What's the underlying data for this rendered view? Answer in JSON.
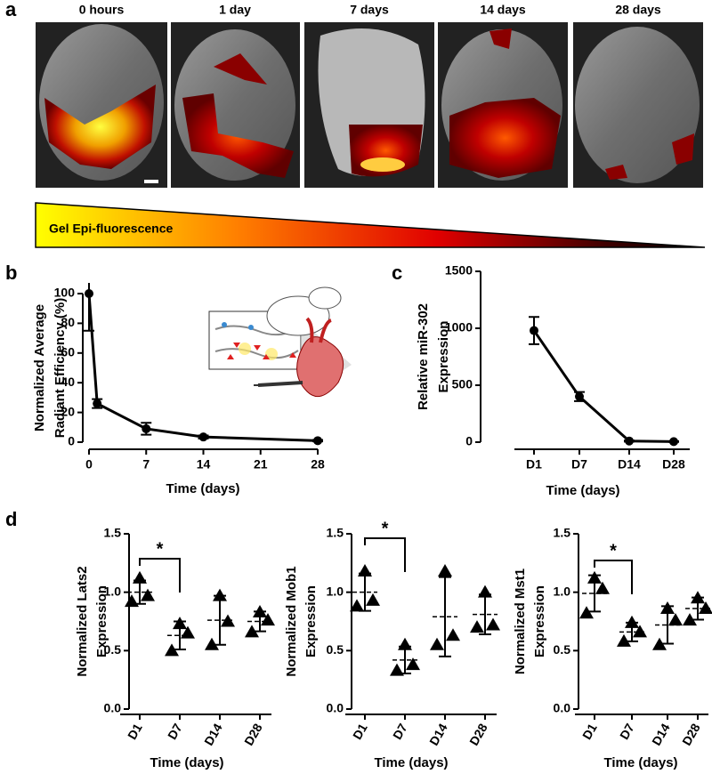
{
  "panel_labels": [
    "a",
    "b",
    "c",
    "d"
  ],
  "images": {
    "labels": [
      "0 hours",
      "1 day",
      "7 days",
      "14 days",
      "28 days"
    ],
    "gradient_label": "Gel Epi-fluorescence"
  },
  "chart_data": [
    {
      "type": "line",
      "x": [
        0,
        1,
        7,
        14,
        28
      ],
      "values": [
        100,
        26,
        9,
        3.5,
        1
      ],
      "errors": [
        25,
        3,
        4,
        1,
        0.5
      ],
      "xlim": [
        0,
        28
      ],
      "xticks": [
        0,
        7,
        14,
        21,
        28
      ],
      "ylim": [
        0,
        100
      ],
      "yticks": [
        0,
        20,
        40,
        60,
        80,
        100
      ],
      "x_label": "Time (days)",
      "y_label": [
        "Normalized Average",
        "Radiant Efficiency (%)"
      ],
      "color": "#000000"
    },
    {
      "type": "line",
      "categories": [
        "D1",
        "D7",
        "D14",
        "D28"
      ],
      "values": [
        980,
        400,
        10,
        5
      ],
      "errors": [
        120,
        40,
        5,
        3
      ],
      "ylim": [
        0,
        1500
      ],
      "yticks": [
        0,
        500,
        1000,
        1500
      ],
      "x_label": "Time (days)",
      "y_label": [
        "Relative miR-302",
        "Expression"
      ],
      "color": "#000000"
    },
    {
      "type": "dot",
      "categories": [
        "D1",
        "D7",
        "D14",
        "D28"
      ],
      "points": [
        [
          0.92,
          1.12,
          0.97
        ],
        [
          0.5,
          0.73,
          0.65
        ],
        [
          0.55,
          0.97,
          0.75
        ],
        [
          0.66,
          0.83,
          0.76
        ]
      ],
      "mean": [
        1.0,
        0.63,
        0.76,
        0.75
      ],
      "sd": [
        0.1,
        0.12,
        0.21,
        0.085
      ],
      "ylim": [
        0,
        1.5
      ],
      "yticks": [
        {
          "value": 0,
          "label": "0.0"
        },
        0.5,
        {
          "value": 1,
          "label": "1.0"
        },
        1.5
      ],
      "annotation": "*",
      "x_label": "Time (days)",
      "y_label": [
        "Normalized Lats2",
        "Expression"
      ],
      "color": "#000000"
    },
    {
      "type": "dot",
      "categories": [
        "D1",
        "D7",
        "D14",
        "D28"
      ],
      "points": [
        [
          0.88,
          1.18,
          0.93
        ],
        [
          0.33,
          0.55,
          0.38
        ],
        [
          0.55,
          1.18,
          0.63
        ],
        [
          0.7,
          1.0,
          0.72
        ]
      ],
      "mean": [
        1.0,
        0.42,
        0.79,
        0.81
      ],
      "sd": [
        0.16,
        0.115,
        0.34,
        0.17
      ],
      "ylim": [
        0,
        1.5
      ],
      "yticks": [
        {
          "value": 0,
          "label": "0.0"
        },
        0.5,
        {
          "value": 1,
          "label": "1.0"
        },
        1.5
      ],
      "annotation": "*",
      "x_label": "Time (days)",
      "y_label": [
        "Normalized Mob1",
        "Expression"
      ],
      "color": "#000000"
    },
    {
      "type": "dot",
      "categories": [
        "D1",
        "D7",
        "D14",
        "D28"
      ],
      "points": [
        [
          0.82,
          1.12,
          1.03
        ],
        [
          0.58,
          0.74,
          0.66
        ],
        [
          0.55,
          0.86,
          0.76
        ],
        [
          0.76,
          0.95,
          0.86
        ]
      ],
      "mean": [
        0.99,
        0.66,
        0.72,
        0.86
      ],
      "sd": [
        0.155,
        0.08,
        0.16,
        0.095
      ],
      "ylim": [
        0,
        1.5
      ],
      "yticks": [
        {
          "value": 0,
          "label": "0.0"
        },
        0.5,
        {
          "value": 1,
          "label": "1.0"
        },
        1.5
      ],
      "annotation": "*",
      "x_label": "Time (days)",
      "y_label": [
        "Normalized Mst1",
        "Expression"
      ],
      "color": "#000000"
    }
  ]
}
